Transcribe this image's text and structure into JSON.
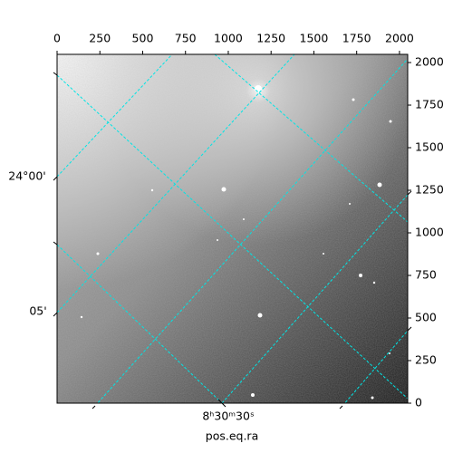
{
  "chart_data": {
    "type": "image",
    "xlim": [
      0,
      2048
    ],
    "xticks": [
      0,
      250,
      500,
      750,
      1000,
      1250,
      1500,
      1750,
      2000
    ],
    "ylim": [
      0,
      2048
    ],
    "yticks": [
      0,
      250,
      500,
      750,
      1000,
      1250,
      1500,
      1750,
      2000
    ],
    "dec_labels": [
      "24°00'",
      "05'"
    ],
    "ra_labels": [
      "8ʰ30ᵐ30ˢ"
    ],
    "xlabel": "pos.eq.ra",
    "grid_color": "#00e5e5"
  }
}
